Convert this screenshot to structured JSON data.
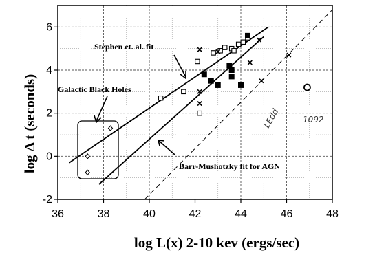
{
  "chart_data": {
    "type": "scatter",
    "xlabel": "log L(x) 2-10 kev (ergs/sec)",
    "ylabel": "log Δ t (seconds)",
    "xlim": [
      36,
      48
    ],
    "ylim": [
      -2,
      7
    ],
    "x_ticks": [
      "36",
      "38",
      "40",
      "42",
      "44",
      "46",
      "48"
    ],
    "y_ticks": [
      "-2",
      "0",
      "2",
      "4",
      "6"
    ],
    "grid": true,
    "annotations": {
      "stephen": "Stephen et. al. fit",
      "galactic": "Galactic Black Holes",
      "barr": "Barr-Mushotzky fit for AGN",
      "ledd": "LEdd",
      "n1092": "1092"
    },
    "series": [
      {
        "marker": "diamond",
        "points": [
          [
            37.3,
            0.0
          ],
          [
            37.3,
            -0.75
          ],
          [
            38.3,
            1.3
          ]
        ]
      },
      {
        "marker": "open-square",
        "points": [
          [
            40.5,
            2.7
          ],
          [
            41.5,
            3.0
          ],
          [
            42.1,
            4.4
          ],
          [
            42.2,
            2.0
          ],
          [
            42.8,
            4.8
          ],
          [
            43.1,
            4.9
          ],
          [
            43.3,
            5.05
          ],
          [
            43.6,
            5.0
          ],
          [
            43.7,
            4.9
          ],
          [
            43.9,
            5.2
          ],
          [
            44.1,
            5.3
          ],
          [
            44.3,
            5.5
          ]
        ]
      },
      {
        "marker": "filled-square",
        "points": [
          [
            42.4,
            3.8
          ],
          [
            42.7,
            3.5
          ],
          [
            43.0,
            3.3
          ],
          [
            43.5,
            4.2
          ],
          [
            43.6,
            4.0
          ],
          [
            43.6,
            3.7
          ],
          [
            44.0,
            3.3
          ],
          [
            44.3,
            5.6
          ]
        ]
      },
      {
        "marker": "cross",
        "points": [
          [
            42.2,
            4.95
          ],
          [
            42.2,
            3.0
          ],
          [
            42.2,
            2.45
          ],
          [
            43.0,
            4.85
          ],
          [
            44.4,
            4.35
          ],
          [
            44.8,
            5.4
          ],
          [
            44.9,
            3.5
          ],
          [
            46.1,
            4.7
          ]
        ]
      },
      {
        "marker": "open-circle",
        "points": [
          [
            46.9,
            3.2
          ]
        ]
      }
    ],
    "lines": [
      {
        "name": "Stephen et. al. fit",
        "style": "solid",
        "points": [
          [
            36.5,
            -0.3
          ],
          [
            45.2,
            6.0
          ]
        ]
      },
      {
        "name": "Barr-Mushotzky fit for AGN",
        "style": "solid",
        "points": [
          [
            37.8,
            -1.3
          ],
          [
            45.0,
            5.55
          ]
        ]
      },
      {
        "name": "LEdd",
        "style": "dashed",
        "points": [
          [
            39.8,
            -2.0
          ],
          [
            48.0,
            6.8
          ]
        ]
      }
    ]
  }
}
